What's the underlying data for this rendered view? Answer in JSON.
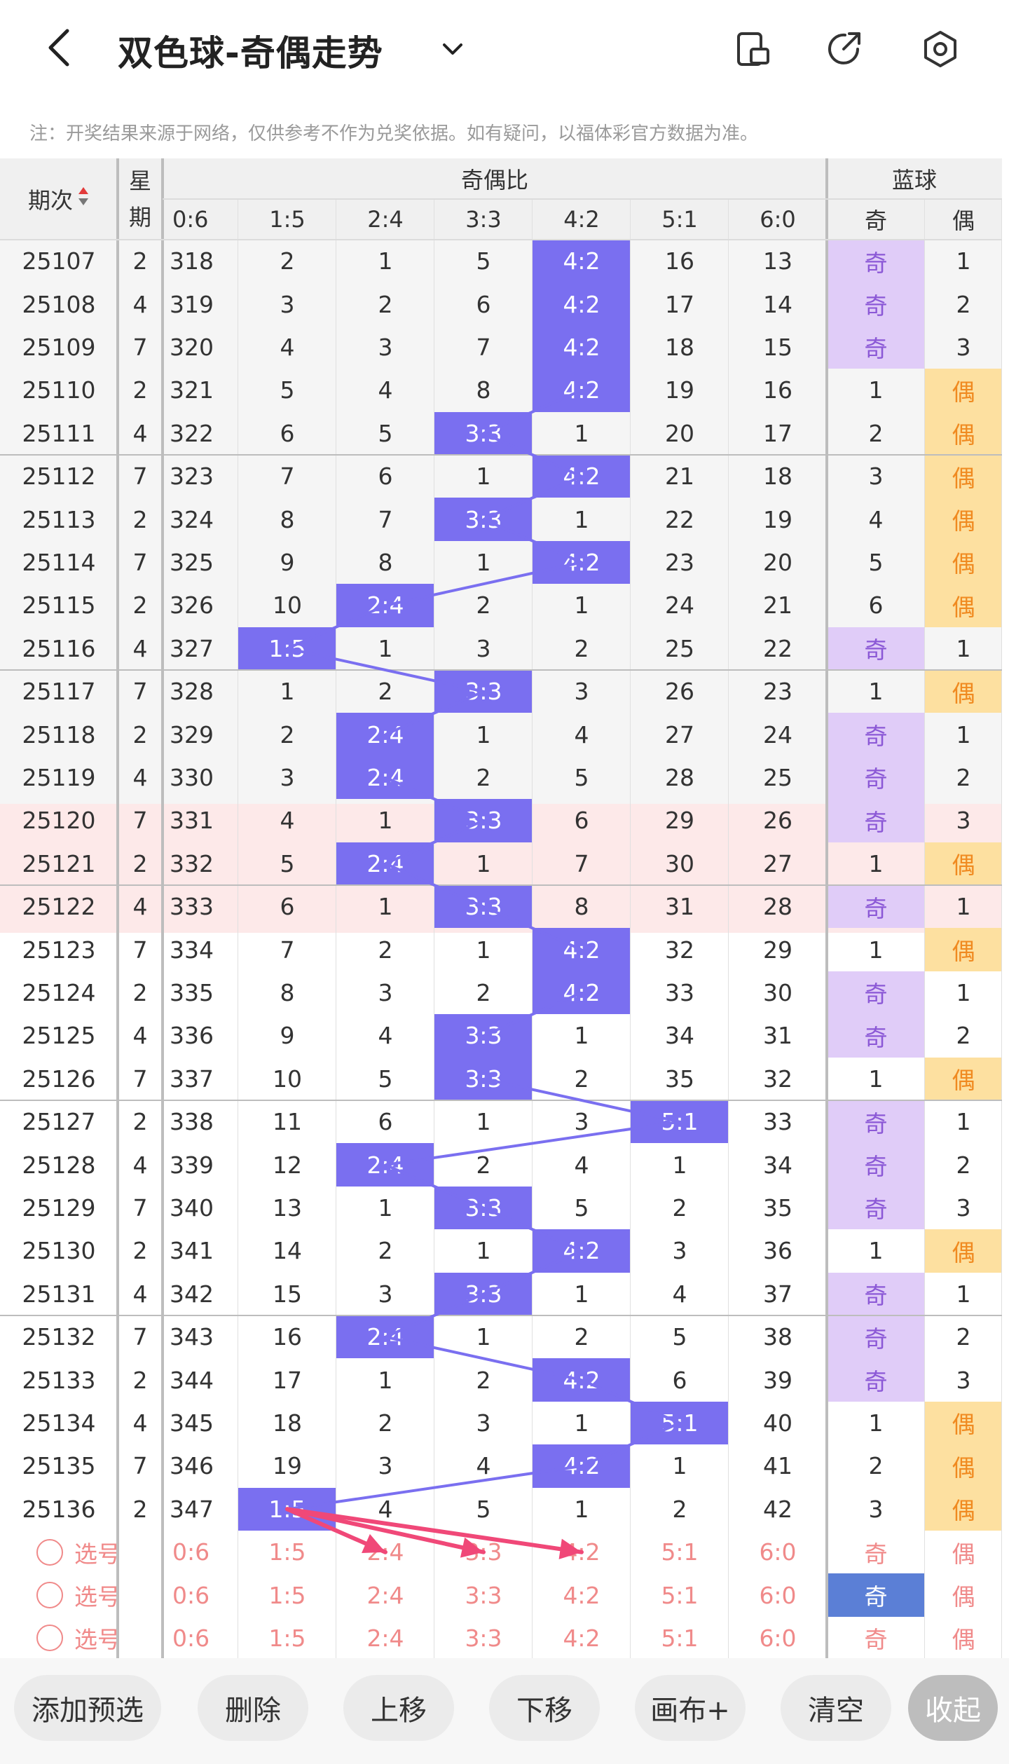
{
  "header": {
    "title": "双色球-奇偶走势"
  },
  "notice": "注：开奖结果来源于网络，仅供参考不作为兑奖依据。如有疑问，以福体彩官方数据为准。",
  "table": {
    "col_period": "期次",
    "col_week": "星期",
    "group_ratio": "奇偶比",
    "group_blue": "蓝球",
    "ratio_cols": [
      "0:6",
      "1:5",
      "2:4",
      "3:3",
      "4:2",
      "5:1",
      "6:0"
    ],
    "blue_cols": [
      "奇",
      "偶"
    ],
    "rows": [
      {
        "p": "25107",
        "w": "2",
        "c": [
          "318",
          "2",
          "1",
          "5",
          "4:2",
          "16",
          "13"
        ],
        "hi": 4,
        "b": [
          "奇",
          "1"
        ],
        "bt": 0
      },
      {
        "p": "25108",
        "w": "4",
        "c": [
          "319",
          "3",
          "2",
          "6",
          "4:2",
          "17",
          "14"
        ],
        "hi": 4,
        "b": [
          "奇",
          "2"
        ],
        "bt": 0
      },
      {
        "p": "25109",
        "w": "7",
        "c": [
          "320",
          "4",
          "3",
          "7",
          "4:2",
          "18",
          "15"
        ],
        "hi": 4,
        "b": [
          "奇",
          "3"
        ],
        "bt": 0
      },
      {
        "p": "25110",
        "w": "2",
        "c": [
          "321",
          "5",
          "4",
          "8",
          "4:2",
          "19",
          "16"
        ],
        "hi": 4,
        "b": [
          "1",
          "偶"
        ],
        "bt": 1
      },
      {
        "p": "25111",
        "w": "4",
        "c": [
          "322",
          "6",
          "5",
          "3:3",
          "1",
          "20",
          "17"
        ],
        "hi": 3,
        "b": [
          "2",
          "偶"
        ],
        "bt": 1
      },
      {
        "p": "25112",
        "w": "7",
        "c": [
          "323",
          "7",
          "6",
          "1",
          "4:2",
          "21",
          "18"
        ],
        "hi": 4,
        "b": [
          "3",
          "偶"
        ],
        "bt": 1
      },
      {
        "p": "25113",
        "w": "2",
        "c": [
          "324",
          "8",
          "7",
          "3:3",
          "1",
          "22",
          "19"
        ],
        "hi": 3,
        "b": [
          "4",
          "偶"
        ],
        "bt": 1
      },
      {
        "p": "25114",
        "w": "7",
        "c": [
          "325",
          "9",
          "8",
          "1",
          "4:2",
          "23",
          "20"
        ],
        "hi": 4,
        "b": [
          "5",
          "偶"
        ],
        "bt": 1
      },
      {
        "p": "25115",
        "w": "2",
        "c": [
          "326",
          "10",
          "2:4",
          "2",
          "1",
          "24",
          "21"
        ],
        "hi": 2,
        "b": [
          "6",
          "偶"
        ],
        "bt": 1
      },
      {
        "p": "25116",
        "w": "4",
        "c": [
          "327",
          "1:5",
          "1",
          "3",
          "2",
          "25",
          "22"
        ],
        "hi": 1,
        "b": [
          "奇",
          "1"
        ],
        "bt": 0
      },
      {
        "p": "25117",
        "w": "7",
        "c": [
          "328",
          "1",
          "2",
          "3:3",
          "3",
          "26",
          "23"
        ],
        "hi": 3,
        "b": [
          "1",
          "偶"
        ],
        "bt": 1
      },
      {
        "p": "25118",
        "w": "2",
        "c": [
          "329",
          "2",
          "2:4",
          "1",
          "4",
          "27",
          "24"
        ],
        "hi": 2,
        "b": [
          "奇",
          "1"
        ],
        "bt": 0
      },
      {
        "p": "25119",
        "w": "4",
        "c": [
          "330",
          "3",
          "2:4",
          "2",
          "5",
          "28",
          "25"
        ],
        "hi": 2,
        "b": [
          "奇",
          "2"
        ],
        "bt": 0
      },
      {
        "p": "25120",
        "w": "7",
        "c": [
          "331",
          "4",
          "1",
          "3:3",
          "6",
          "29",
          "26"
        ],
        "hi": 3,
        "b": [
          "奇",
          "3"
        ],
        "bt": 0
      },
      {
        "p": "25121",
        "w": "2",
        "c": [
          "332",
          "5",
          "2:4",
          "1",
          "7",
          "30",
          "27"
        ],
        "hi": 2,
        "b": [
          "1",
          "偶"
        ],
        "bt": 1
      },
      {
        "p": "25122",
        "w": "4",
        "c": [
          "333",
          "6",
          "1",
          "3:3",
          "8",
          "31",
          "28"
        ],
        "hi": 3,
        "b": [
          "奇",
          "1"
        ],
        "bt": 0
      },
      {
        "p": "25123",
        "w": "7",
        "c": [
          "334",
          "7",
          "2",
          "1",
          "4:2",
          "32",
          "29"
        ],
        "hi": 4,
        "b": [
          "1",
          "偶"
        ],
        "bt": 1
      },
      {
        "p": "25124",
        "w": "2",
        "c": [
          "335",
          "8",
          "3",
          "2",
          "4:2",
          "33",
          "30"
        ],
        "hi": 4,
        "b": [
          "奇",
          "1"
        ],
        "bt": 0
      },
      {
        "p": "25125",
        "w": "4",
        "c": [
          "336",
          "9",
          "4",
          "3:3",
          "1",
          "34",
          "31"
        ],
        "hi": 3,
        "b": [
          "奇",
          "2"
        ],
        "bt": 0
      },
      {
        "p": "25126",
        "w": "7",
        "c": [
          "337",
          "10",
          "5",
          "3:3",
          "2",
          "35",
          "32"
        ],
        "hi": 3,
        "b": [
          "1",
          "偶"
        ],
        "bt": 1
      },
      {
        "p": "25127",
        "w": "2",
        "c": [
          "338",
          "11",
          "6",
          "1",
          "3",
          "5:1",
          "33"
        ],
        "hi": 5,
        "b": [
          "奇",
          "1"
        ],
        "bt": 0
      },
      {
        "p": "25128",
        "w": "4",
        "c": [
          "339",
          "12",
          "2:4",
          "2",
          "4",
          "1",
          "34"
        ],
        "hi": 2,
        "b": [
          "奇",
          "2"
        ],
        "bt": 0
      },
      {
        "p": "25129",
        "w": "7",
        "c": [
          "340",
          "13",
          "1",
          "3:3",
          "5",
          "2",
          "35"
        ],
        "hi": 3,
        "b": [
          "奇",
          "3"
        ],
        "bt": 0
      },
      {
        "p": "25130",
        "w": "2",
        "c": [
          "341",
          "14",
          "2",
          "1",
          "4:2",
          "3",
          "36"
        ],
        "hi": 4,
        "b": [
          "1",
          "偶"
        ],
        "bt": 1
      },
      {
        "p": "25131",
        "w": "4",
        "c": [
          "342",
          "15",
          "3",
          "3:3",
          "1",
          "4",
          "37"
        ],
        "hi": 3,
        "b": [
          "奇",
          "1"
        ],
        "bt": 0
      },
      {
        "p": "25132",
        "w": "7",
        "c": [
          "343",
          "16",
          "2:4",
          "1",
          "2",
          "5",
          "38"
        ],
        "hi": 2,
        "b": [
          "奇",
          "2"
        ],
        "bt": 0
      },
      {
        "p": "25133",
        "w": "2",
        "c": [
          "344",
          "17",
          "1",
          "2",
          "4:2",
          "6",
          "39"
        ],
        "hi": 4,
        "b": [
          "奇",
          "3"
        ],
        "bt": 0
      },
      {
        "p": "25134",
        "w": "4",
        "c": [
          "345",
          "18",
          "2",
          "3",
          "1",
          "5:1",
          "40"
        ],
        "hi": 5,
        "b": [
          "1",
          "偶"
        ],
        "bt": 1
      },
      {
        "p": "25135",
        "w": "7",
        "c": [
          "346",
          "19",
          "3",
          "4",
          "4:2",
          "1",
          "41"
        ],
        "hi": 4,
        "b": [
          "2",
          "偶"
        ],
        "bt": 1
      },
      {
        "p": "25136",
        "w": "2",
        "c": [
          "347",
          "1:5",
          "4",
          "5",
          "1",
          "2",
          "42"
        ],
        "hi": 1,
        "b": [
          "3",
          "偶"
        ],
        "bt": 1
      }
    ],
    "select_label": "选号",
    "select_rows": 3,
    "selected_blue_row": 1
  },
  "toolbar": {
    "buttons": [
      "添加预选",
      "删除",
      "上移",
      "下移",
      "画布+",
      "清空",
      "收起"
    ]
  },
  "colors": {
    "highlight": "#7a6ff0",
    "odd_bg": "#e0ccf8",
    "even_bg": "#fde0a0",
    "select_text": "#f08a8a",
    "arrow": "#f04878"
  }
}
